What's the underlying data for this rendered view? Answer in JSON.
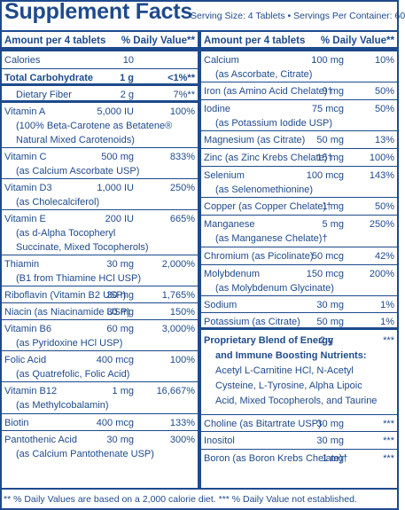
{
  "header": {
    "title": "Supplement Facts",
    "serving": "Serving Size: 4 Tablets • Servings Per Container: 60"
  },
  "left": {
    "col_amount": "Amount per 4 tablets",
    "col_dv": "% Daily Value**",
    "rows": [
      {
        "name": "Calories",
        "amount": "10",
        "dv": ""
      },
      {
        "name": "Total Carbohydrate",
        "amount": "1 g",
        "dv": "<1%**"
      },
      {
        "name": "Dietary Fiber",
        "amount": "2 g",
        "dv": "7%**"
      },
      {
        "name": "Vitamin A",
        "amount": "5,000 IU",
        "dv": "100%",
        "sub": [
          "(100% Beta-Carotene as Betatene®",
          "Natural Mixed Carotenoids)"
        ]
      },
      {
        "name": "Vitamin C",
        "amount": "500 mg",
        "dv": "833%",
        "sub": [
          "(as Calcium Ascorbate USP)"
        ]
      },
      {
        "name": "Vitamin D3",
        "amount": "1,000 IU",
        "dv": "250%",
        "sub": [
          "(as Cholecalciferol)"
        ]
      },
      {
        "name": "Vitamin E",
        "amount": "200 IU",
        "dv": "665%",
        "sub": [
          "(as d-Alpha Tocopheryl",
          "Succinate, Mixed Tocopherols)"
        ]
      },
      {
        "name": "Thiamin",
        "amount": "30 mg",
        "dv": "2,000%",
        "sub": [
          "(B1 from Thiamine HCl USP)"
        ]
      },
      {
        "name": "Riboflavin (Vitamin B2 USP)",
        "amount": "30 mg",
        "dv": "1,765%"
      },
      {
        "name": "Niacin (as Niacinamide USP)",
        "amount": "30 mg",
        "dv": "150%"
      },
      {
        "name": "Vitamin B6",
        "amount": "60 mg",
        "dv": "3,000%",
        "sub": [
          "(as Pyridoxine HCl USP)"
        ]
      },
      {
        "name": "Folic Acid",
        "amount": "400 mcg",
        "dv": "100%",
        "sub": [
          "(as Quatrefolic, Folic Acid)"
        ]
      },
      {
        "name": "Vitamin B12",
        "amount": "1 mg",
        "dv": "16,667%",
        "sub": [
          "(as Methylcobalamin)"
        ]
      },
      {
        "name": "Biotin",
        "amount": "400 mcg",
        "dv": "133%"
      },
      {
        "name": "Pantothenic Acid",
        "amount": "30 mg",
        "dv": "300%",
        "sub": [
          "(as Calcium Pantothenate USP)"
        ]
      }
    ]
  },
  "right": {
    "col_amount": "Amount per 4 tablets",
    "col_dv": "% Daily Value**",
    "rows": [
      {
        "name": "Calcium",
        "amount": "100 mg",
        "dv": "10%",
        "sub": [
          "(as Ascorbate, Citrate)"
        ]
      },
      {
        "name": "Iron (as Amino Acid Chelate)†",
        "amount": "9 mg",
        "dv": "50%"
      },
      {
        "name": "Iodine",
        "amount": "75 mcg",
        "dv": "50%",
        "sub": [
          "(as Potassium Iodide USP)"
        ]
      },
      {
        "name": "Magnesium (as Citrate)",
        "amount": "50 mg",
        "dv": "13%"
      },
      {
        "name": "Zinc (as Zinc Krebs Chelate)†",
        "amount": "15 mg",
        "dv": "100%"
      },
      {
        "name": "Selenium",
        "amount": "100 mcg",
        "dv": "143%",
        "sub": [
          "(as Selenomethionine)"
        ]
      },
      {
        "name": "Copper (as Copper Chelate)†",
        "amount": "1 mg",
        "dv": "50%"
      },
      {
        "name": "Manganese",
        "amount": "5 mg",
        "dv": "250%",
        "sub": [
          "(as Manganese Chelate)†"
        ]
      },
      {
        "name": "Chromium (as Picolinate)",
        "amount": "50 mcg",
        "dv": "42%"
      },
      {
        "name": "Molybdenum",
        "amount": "150 mcg",
        "dv": "200%",
        "sub": [
          "(as Molybdenum Glycinate)"
        ]
      },
      {
        "name": "Sodium",
        "amount": "30 mg",
        "dv": "1%"
      },
      {
        "name": "Potassium (as Citrate)",
        "amount": "50 mg",
        "dv": "1%"
      }
    ],
    "blend": {
      "name": "Proprietary Blend of Energy",
      "name2": "and Immune Boosting Nutrients:",
      "amount": "2 g",
      "dv": "***",
      "ingredients": [
        "Acetyl L-Carnitine HCl, N-Acetyl",
        "Cysteine, L-Tyrosine, Alpha Lipoic",
        "Acid, Mixed Tocopherols, and Taurine"
      ]
    },
    "rows2": [
      {
        "name": "Choline (as Bitartrate USP)",
        "amount": "30 mg",
        "dv": "***"
      },
      {
        "name": "Inositol",
        "amount": "30 mg",
        "dv": "***"
      },
      {
        "name": "Boron (as Boron Krebs Chelate)†",
        "amount": "1 mg",
        "dv": "***"
      }
    ]
  },
  "footer": "** % Daily Values are based on a 2,000 calorie diet.   *** % Daily Value not established."
}
